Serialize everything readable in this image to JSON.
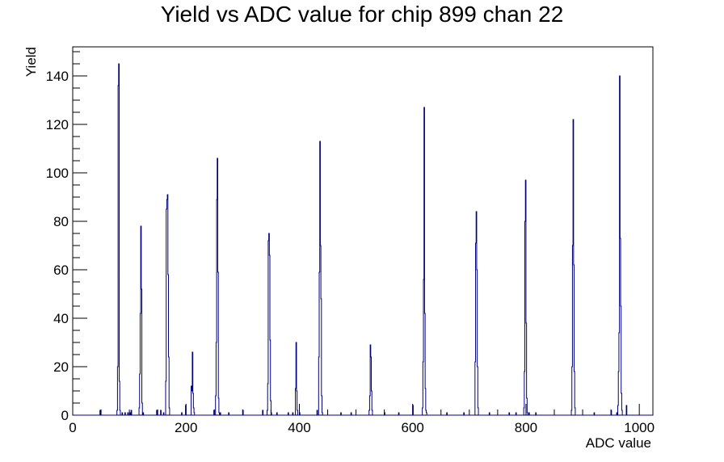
{
  "chart_data": {
    "type": "histogram",
    "title": "Yield vs ADC value for chip 899 chan 22",
    "xlabel": "ADC value",
    "ylabel": "Yield",
    "xlim": [
      0,
      1024
    ],
    "ylim": [
      0,
      152
    ],
    "x_ticks": [
      0,
      200,
      400,
      600,
      800,
      1000
    ],
    "y_ticks": [
      0,
      20,
      40,
      60,
      80,
      100,
      120,
      140
    ],
    "grid": false,
    "legend": "none",
    "line_color": "#00007f",
    "bins": [
      [
        48,
        2
      ],
      [
        78,
        2
      ],
      [
        79,
        20
      ],
      [
        80,
        136
      ],
      [
        81,
        145
      ],
      [
        82,
        14
      ],
      [
        83,
        2
      ],
      [
        87,
        1
      ],
      [
        92,
        1
      ],
      [
        97,
        1
      ],
      [
        101,
        1
      ],
      [
        103,
        2
      ],
      [
        148,
        2
      ],
      [
        155,
        2
      ],
      [
        160,
        1
      ],
      [
        117,
        3
      ],
      [
        118,
        17
      ],
      [
        119,
        42
      ],
      [
        120,
        78
      ],
      [
        121,
        52
      ],
      [
        122,
        5
      ],
      [
        124,
        1
      ],
      [
        164,
        14
      ],
      [
        165,
        85
      ],
      [
        166,
        89
      ],
      [
        167,
        91
      ],
      [
        168,
        58
      ],
      [
        169,
        24
      ],
      [
        170,
        3
      ],
      [
        192,
        1
      ],
      [
        199,
        4
      ],
      [
        209,
        12
      ],
      [
        210,
        10
      ],
      [
        211,
        26
      ],
      [
        212,
        9
      ],
      [
        213,
        3
      ],
      [
        214,
        1
      ],
      [
        249,
        2
      ],
      [
        252,
        8
      ],
      [
        253,
        30
      ],
      [
        254,
        89
      ],
      [
        255,
        106
      ],
      [
        256,
        59
      ],
      [
        257,
        7
      ],
      [
        258,
        1
      ],
      [
        260,
        1
      ],
      [
        275,
        1
      ],
      [
        300,
        2
      ],
      [
        335,
        2
      ],
      [
        343,
        2
      ],
      [
        344,
        13
      ],
      [
        345,
        72
      ],
      [
        346,
        75
      ],
      [
        347,
        66
      ],
      [
        348,
        31
      ],
      [
        349,
        6
      ],
      [
        350,
        1
      ],
      [
        360,
        1
      ],
      [
        380,
        1
      ],
      [
        388,
        1
      ],
      [
        393,
        11
      ],
      [
        394,
        30
      ],
      [
        395,
        10
      ],
      [
        396,
        2
      ],
      [
        400,
        1
      ],
      [
        431,
        2
      ],
      [
        434,
        24
      ],
      [
        435,
        59
      ],
      [
        436,
        113
      ],
      [
        437,
        70
      ],
      [
        438,
        48
      ],
      [
        439,
        8
      ],
      [
        440,
        1
      ],
      [
        473,
        1
      ],
      [
        491,
        1
      ],
      [
        523,
        2
      ],
      [
        524,
        8
      ],
      [
        525,
        29
      ],
      [
        526,
        24
      ],
      [
        527,
        10
      ],
      [
        528,
        2
      ],
      [
        550,
        1
      ],
      [
        575,
        1
      ],
      [
        600,
        4
      ],
      [
        617,
        3
      ],
      [
        618,
        22
      ],
      [
        619,
        56
      ],
      [
        620,
        127
      ],
      [
        621,
        42
      ],
      [
        622,
        11
      ],
      [
        623,
        2
      ],
      [
        624,
        1
      ],
      [
        660,
        1
      ],
      [
        690,
        1
      ],
      [
        710,
        22
      ],
      [
        711,
        71
      ],
      [
        712,
        84
      ],
      [
        713,
        60
      ],
      [
        714,
        20
      ],
      [
        715,
        3
      ],
      [
        735,
        1
      ],
      [
        770,
        1
      ],
      [
        782,
        1
      ],
      [
        796,
        3
      ],
      [
        797,
        18
      ],
      [
        798,
        80
      ],
      [
        799,
        97
      ],
      [
        800,
        38
      ],
      [
        801,
        7
      ],
      [
        802,
        1
      ],
      [
        805,
        1
      ],
      [
        817,
        1
      ],
      [
        880,
        2
      ],
      [
        881,
        20
      ],
      [
        882,
        70
      ],
      [
        883,
        122
      ],
      [
        884,
        62
      ],
      [
        885,
        18
      ],
      [
        886,
        3
      ],
      [
        920,
        1
      ],
      [
        950,
        2
      ],
      [
        960,
        1
      ],
      [
        962,
        4
      ],
      [
        963,
        18
      ],
      [
        964,
        34
      ],
      [
        965,
        140
      ],
      [
        966,
        73
      ],
      [
        967,
        45
      ],
      [
        968,
        9
      ],
      [
        969,
        2
      ],
      [
        977,
        4
      ]
    ]
  }
}
